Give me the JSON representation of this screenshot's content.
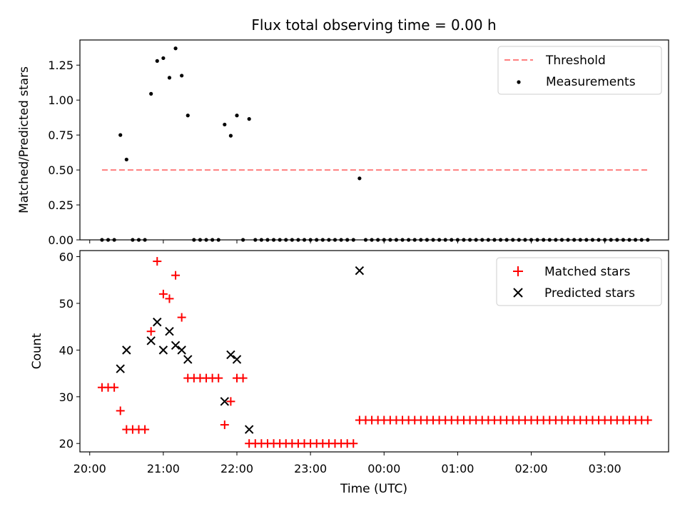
{
  "chart_data": [
    {
      "type": "scatter",
      "title": "Flux total observing time = 0.00 h",
      "ylabel": "Matched/Predicted stars",
      "xlabel": "",
      "xlim": [
        "19:52",
        "03:52"
      ],
      "ylim": [
        0,
        1.43
      ],
      "yticks": [
        0.0,
        0.25,
        0.5,
        0.75,
        1.0,
        1.25
      ],
      "ytick_labels": [
        "0.00",
        "0.25",
        "0.50",
        "0.75",
        "1.00",
        "1.25"
      ],
      "legend_position": "top-right",
      "threshold": {
        "name": "Threshold",
        "x": [
          "20:10",
          "23:40",
          "03:35"
        ],
        "y": 0.5,
        "color": "#ff7f7f",
        "style": "dashed"
      },
      "series": [
        {
          "name": "Measurements",
          "color": "#000000",
          "x": [
            "20:10",
            "20:15",
            "20:20",
            "20:25",
            "20:30",
            "20:35",
            "20:40",
            "20:45",
            "20:50",
            "20:55",
            "21:00",
            "21:05",
            "21:10",
            "21:15",
            "21:20",
            "21:25",
            "21:30",
            "21:35",
            "21:40",
            "21:45",
            "21:50",
            "21:55",
            "22:00",
            "22:05",
            "22:10",
            "22:15",
            "22:20",
            "22:25",
            "22:30",
            "22:35",
            "22:40",
            "22:45",
            "22:50",
            "22:55",
            "23:00",
            "23:05",
            "23:10",
            "23:15",
            "23:20",
            "23:25",
            "23:30",
            "23:35",
            "23:40",
            "23:45",
            "23:50",
            "23:55",
            "00:00",
            "00:05",
            "00:10",
            "00:15",
            "00:20",
            "00:25",
            "00:30",
            "00:35",
            "00:40",
            "00:45",
            "00:50",
            "00:55",
            "01:00",
            "01:05",
            "01:10",
            "01:15",
            "01:20",
            "01:25",
            "01:30",
            "01:35",
            "01:40",
            "01:45",
            "01:50",
            "01:55",
            "02:00",
            "02:05",
            "02:10",
            "02:15",
            "02:20",
            "02:25",
            "02:30",
            "02:35",
            "02:40",
            "02:45",
            "02:50",
            "02:55",
            "03:00",
            "03:05",
            "03:10",
            "03:15",
            "03:20",
            "03:25",
            "03:30",
            "03:35"
          ],
          "y": [
            0,
            0,
            0,
            0.75,
            0.575,
            0,
            0,
            0,
            1.045,
            1.28,
            1.3,
            1.16,
            1.37,
            1.175,
            0.89,
            0,
            0,
            0,
            0,
            0,
            0.825,
            0.745,
            0.89,
            0,
            0.865,
            0,
            0,
            0,
            0,
            0,
            0,
            0,
            0,
            0,
            0,
            0,
            0,
            0,
            0,
            0,
            0,
            0,
            0.44,
            0,
            0,
            0,
            0,
            0,
            0,
            0,
            0,
            0,
            0,
            0,
            0,
            0,
            0,
            0,
            0,
            0,
            0,
            0,
            0,
            0,
            0,
            0,
            0,
            0,
            0,
            0,
            0,
            0,
            0,
            0,
            0,
            0,
            0,
            0,
            0,
            0,
            0,
            0,
            0,
            0,
            0,
            0,
            0,
            0,
            0,
            0
          ]
        }
      ]
    },
    {
      "type": "scatter",
      "title": "",
      "ylabel": "Count",
      "xlabel": "Time (UTC)",
      "xlim": [
        "19:52",
        "03:52"
      ],
      "ylim": [
        18.2,
        61.3
      ],
      "yticks": [
        20,
        30,
        40,
        50,
        60
      ],
      "ytick_labels": [
        "20",
        "30",
        "40",
        "50",
        "60"
      ],
      "xtick_labels": [
        "20:00",
        "21:00",
        "22:00",
        "23:00",
        "00:00",
        "01:00",
        "02:00",
        "03:00"
      ],
      "legend_position": "top-right",
      "series": [
        {
          "name": "Matched stars",
          "color": "#ff0000",
          "marker": "+",
          "x": [
            "20:10",
            "20:15",
            "20:20",
            "20:25",
            "20:30",
            "20:35",
            "20:40",
            "20:45",
            "20:50",
            "20:55",
            "21:00",
            "21:05",
            "21:10",
            "21:15",
            "21:20",
            "21:25",
            "21:30",
            "21:35",
            "21:40",
            "21:45",
            "21:50",
            "21:55",
            "22:00",
            "22:05",
            "22:10",
            "22:15",
            "22:20",
            "22:25",
            "22:30",
            "22:35",
            "22:40",
            "22:45",
            "22:50",
            "22:55",
            "23:00",
            "23:05",
            "23:10",
            "23:15",
            "23:20",
            "23:25",
            "23:30",
            "23:35",
            "23:40",
            "23:45",
            "23:50",
            "23:55",
            "00:00",
            "00:05",
            "00:10",
            "00:15",
            "00:20",
            "00:25",
            "00:30",
            "00:35",
            "00:40",
            "00:45",
            "00:50",
            "00:55",
            "01:00",
            "01:05",
            "01:10",
            "01:15",
            "01:20",
            "01:25",
            "01:30",
            "01:35",
            "01:40",
            "01:45",
            "01:50",
            "01:55",
            "02:00",
            "02:05",
            "02:10",
            "02:15",
            "02:20",
            "02:25",
            "02:30",
            "02:35",
            "02:40",
            "02:45",
            "02:50",
            "02:55",
            "03:00",
            "03:05",
            "03:10",
            "03:15",
            "03:20",
            "03:25",
            "03:30",
            "03:35"
          ],
          "y": [
            32,
            32,
            32,
            27,
            23,
            23,
            23,
            23,
            44,
            59,
            52,
            51,
            56,
            47,
            34,
            34,
            34,
            34,
            34,
            34,
            24,
            29,
            34,
            34,
            20,
            20,
            20,
            20,
            20,
            20,
            20,
            20,
            20,
            20,
            20,
            20,
            20,
            20,
            20,
            20,
            20,
            20,
            25,
            25,
            25,
            25,
            25,
            25,
            25,
            25,
            25,
            25,
            25,
            25,
            25,
            25,
            25,
            25,
            25,
            25,
            25,
            25,
            25,
            25,
            25,
            25,
            25,
            25,
            25,
            25,
            25,
            25,
            25,
            25,
            25,
            25,
            25,
            25,
            25,
            25,
            25,
            25,
            25,
            25,
            25,
            25,
            25,
            25,
            25,
            25
          ]
        },
        {
          "name": "Predicted stars",
          "color": "#000000",
          "marker": "x",
          "x": [
            "20:25",
            "20:30",
            "20:50",
            "20:55",
            "21:00",
            "21:05",
            "21:10",
            "21:15",
            "21:20",
            "21:50",
            "21:55",
            "22:00",
            "22:10",
            "23:40"
          ],
          "y": [
            36,
            40,
            42,
            46,
            40,
            44,
            41,
            40,
            38,
            29,
            39,
            38,
            23,
            57
          ]
        }
      ]
    }
  ]
}
